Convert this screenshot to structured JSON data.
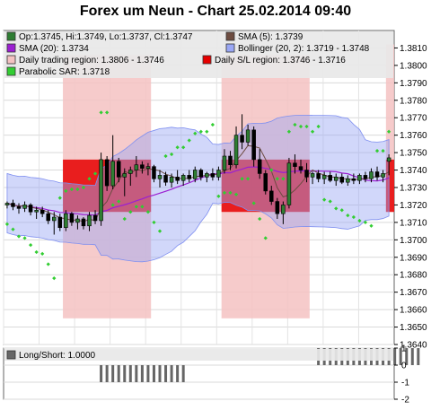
{
  "chart_data": {
    "type": "candlestick",
    "title": "Forex um Neun - Chart 25.02.2014 09:40",
    "legend": [
      {
        "label": "Op:1.3745, Hi:1.3749, Lo:1.3737, Cl:1.3747",
        "color": "#2e7d32"
      },
      {
        "label": "SMA (5): 1.3739",
        "color": "#6d4c41"
      },
      {
        "label": "SMA (20): 1.3734",
        "color": "#9b1fd1"
      },
      {
        "label": "Bollinger (20, 2): 1.3719 - 1.3748",
        "color": "#9aa7f5"
      },
      {
        "label": "Daily trading region: 1.3806 - 1.3746",
        "color": "#f4c2c2"
      },
      {
        "label": "Daily S/L region: 1.3746 - 1.3716",
        "color": "#e60000"
      },
      {
        "label": "Parabolic SAR: 1.3718",
        "color": "#32cd32"
      }
    ],
    "ylim": [
      1.364,
      1.382
    ],
    "y_ticks": [
      "1.3640",
      "1.3650",
      "1.3660",
      "1.3670",
      "1.3680",
      "1.3690",
      "1.3700",
      "1.3710",
      "1.3720",
      "1.3730",
      "1.3740",
      "1.3750",
      "1.3760",
      "1.3770",
      "1.3780",
      "1.3790",
      "1.3800",
      "1.3810"
    ],
    "grid": true,
    "candles": [
      [
        1.372,
        1.3722,
        1.3718,
        1.3721
      ],
      [
        1.3721,
        1.3723,
        1.3717,
        1.3719
      ],
      [
        1.3719,
        1.3721,
        1.3715,
        1.3718
      ],
      [
        1.3718,
        1.3722,
        1.3716,
        1.372
      ],
      [
        1.372,
        1.3721,
        1.3714,
        1.3716
      ],
      [
        1.3716,
        1.3719,
        1.3712,
        1.3717
      ],
      [
        1.3717,
        1.3719,
        1.3713,
        1.3715
      ],
      [
        1.3715,
        1.3717,
        1.3709,
        1.3711
      ],
      [
        1.3711,
        1.3716,
        1.3703,
        1.3713
      ],
      [
        1.3713,
        1.3715,
        1.3705,
        1.3707
      ],
      [
        1.3707,
        1.3717,
        1.3705,
        1.3715
      ],
      [
        1.3715,
        1.3716,
        1.3708,
        1.371
      ],
      [
        1.371,
        1.3714,
        1.3706,
        1.3712
      ],
      [
        1.3712,
        1.3713,
        1.3706,
        1.3708
      ],
      [
        1.3708,
        1.3716,
        1.3705,
        1.3714
      ],
      [
        1.3714,
        1.3717,
        1.3709,
        1.3711
      ],
      [
        1.3711,
        1.375,
        1.3708,
        1.3746
      ],
      [
        1.3746,
        1.3748,
        1.3728,
        1.3731
      ],
      [
        1.3731,
        1.376,
        1.3729,
        1.3745
      ],
      [
        1.3745,
        1.3747,
        1.3733,
        1.3736
      ],
      [
        1.3736,
        1.3741,
        1.3725,
        1.3738
      ],
      [
        1.3738,
        1.3742,
        1.3731,
        1.374
      ],
      [
        1.374,
        1.3748,
        1.3736,
        1.3743
      ],
      [
        1.3743,
        1.3745,
        1.3738,
        1.3741
      ],
      [
        1.3741,
        1.3744,
        1.3737,
        1.3742
      ],
      [
        1.3742,
        1.3743,
        1.3733,
        1.3735
      ],
      [
        1.3735,
        1.374,
        1.373,
        1.3737
      ],
      [
        1.3737,
        1.3739,
        1.3731,
        1.3733
      ],
      [
        1.3733,
        1.3738,
        1.373,
        1.3736
      ],
      [
        1.3736,
        1.374,
        1.3732,
        1.3734
      ],
      [
        1.3734,
        1.3738,
        1.3731,
        1.3737
      ],
      [
        1.3737,
        1.374,
        1.3733,
        1.3735
      ],
      [
        1.3735,
        1.3742,
        1.3733,
        1.374
      ],
      [
        1.374,
        1.3741,
        1.3734,
        1.3736
      ],
      [
        1.3736,
        1.3739,
        1.3733,
        1.3738
      ],
      [
        1.3738,
        1.3741,
        1.3734,
        1.3736
      ],
      [
        1.3736,
        1.3742,
        1.3734,
        1.374
      ],
      [
        1.374,
        1.3752,
        1.3738,
        1.3748
      ],
      [
        1.3748,
        1.3751,
        1.374,
        1.3743
      ],
      [
        1.3743,
        1.3765,
        1.3741,
        1.376
      ],
      [
        1.376,
        1.3772,
        1.3752,
        1.3756
      ],
      [
        1.3756,
        1.3766,
        1.3754,
        1.3763
      ],
      [
        1.3763,
        1.3765,
        1.3742,
        1.3746
      ],
      [
        1.3746,
        1.3752,
        1.3735,
        1.3738
      ],
      [
        1.3738,
        1.374,
        1.3726,
        1.3728
      ],
      [
        1.3728,
        1.3731,
        1.372,
        1.3722
      ],
      [
        1.3722,
        1.3724,
        1.3712,
        1.3715
      ],
      [
        1.3715,
        1.3722,
        1.3709,
        1.372
      ],
      [
        1.372,
        1.3747,
        1.3718,
        1.3744
      ],
      [
        1.3744,
        1.3749,
        1.3738,
        1.3742
      ],
      [
        1.3742,
        1.3746,
        1.3738,
        1.374
      ],
      [
        1.374,
        1.3744,
        1.3733,
        1.3736
      ],
      [
        1.3736,
        1.3739,
        1.3732,
        1.3738
      ],
      [
        1.3738,
        1.374,
        1.3733,
        1.3735
      ],
      [
        1.3735,
        1.3739,
        1.3732,
        1.3737
      ],
      [
        1.3737,
        1.3739,
        1.3733,
        1.3734
      ],
      [
        1.3734,
        1.3738,
        1.3731,
        1.3736
      ],
      [
        1.3736,
        1.3738,
        1.3732,
        1.3733
      ],
      [
        1.3733,
        1.3737,
        1.3731,
        1.3735
      ],
      [
        1.3735,
        1.3738,
        1.3732,
        1.3734
      ],
      [
        1.3734,
        1.3738,
        1.3732,
        1.3737
      ],
      [
        1.3737,
        1.3739,
        1.3733,
        1.3735
      ],
      [
        1.3735,
        1.3741,
        1.3733,
        1.3739
      ],
      [
        1.3739,
        1.3742,
        1.3734,
        1.3736
      ],
      [
        1.3736,
        1.374,
        1.3733,
        1.3738
      ],
      [
        1.3745,
        1.3749,
        1.3737,
        1.3747
      ]
    ],
    "daily_trading_region": [
      1.3806,
      1.3746
    ],
    "daily_sl_region": [
      1.3746,
      1.3716
    ],
    "sub_panel": {
      "label": "Long/Short: 1.0000",
      "ylim": [
        -2,
        1
      ],
      "y_ticks": [
        "1",
        "0",
        "-1",
        "-2"
      ],
      "bars": [
        {
          "from": 16,
          "to": 30,
          "value": -1
        },
        {
          "from": 53,
          "to": 70,
          "value": 1
        }
      ]
    }
  }
}
